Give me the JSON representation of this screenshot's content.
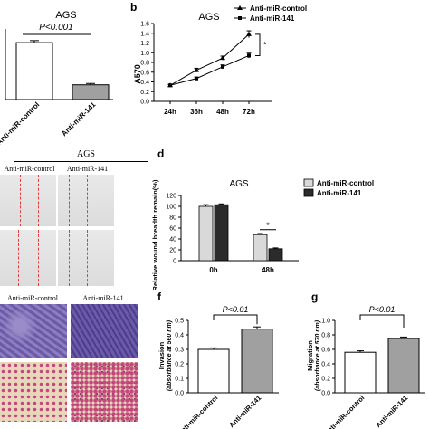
{
  "panels": {
    "a": {
      "chart_data": {
        "type": "bar",
        "title": "AGS",
        "categories": [
          "Anti-miR-control",
          "Anti-miR-141"
        ],
        "values": [
          0.85,
          0.22
        ],
        "errors": [
          0.03,
          0.02
        ],
        "colors": [
          "#ffffff",
          "#a0a0a0"
        ],
        "annotation": "P<0.001"
      }
    },
    "b": {
      "label": "b",
      "chart_data": {
        "type": "line",
        "title": "AGS",
        "ylabel": "A570",
        "categories": [
          "24h",
          "36h",
          "48h",
          "72h"
        ],
        "ylim": [
          0.0,
          1.6
        ],
        "yticks": [
          "0.0",
          "0.2",
          "0.4",
          "0.6",
          "0.8",
          "1.0",
          "1.2",
          "1.4",
          "1.6"
        ],
        "series": [
          {
            "name": "Anti-miR-control",
            "values": [
              0.33,
              0.64,
              0.89,
              1.38
            ],
            "errors": [
              0.02,
              0.04,
              0.04,
              0.07
            ],
            "marker": "triangle"
          },
          {
            "name": "Anti-miR-141",
            "values": [
              0.33,
              0.47,
              0.71,
              0.94
            ],
            "errors": [
              0.02,
              0.03,
              0.04,
              0.05
            ],
            "marker": "square"
          }
        ],
        "annotation": "*"
      }
    },
    "c": {
      "title": "AGS",
      "col_labels": [
        "Anti-miR-control",
        "Anti-miR-141"
      ]
    },
    "d": {
      "label": "d",
      "chart_data": {
        "type": "bar",
        "title": "AGS",
        "ylabel": "Relative wound breadth remain(%)",
        "categories": [
          "0h",
          "48h"
        ],
        "ylim": [
          0,
          120
        ],
        "yticks": [
          "0",
          "20",
          "40",
          "60",
          "80",
          "100",
          "120"
        ],
        "series": [
          {
            "name": "Anti-miR-control",
            "values": [
              100,
              48
            ],
            "errors": [
              3,
              2
            ],
            "color": "#d9d9d9"
          },
          {
            "name": "Anti-miR-141",
            "values": [
              103,
              22
            ],
            "errors": [
              1.5,
              1.5
            ],
            "color": "#2b2b2b"
          }
        ],
        "annotation": "*"
      }
    },
    "e": {
      "col_labels": [
        "Anti-miR-control",
        "Anti-miR-141"
      ]
    },
    "f": {
      "label": "f",
      "chart_data": {
        "type": "bar",
        "ylabel": "Invasion",
        "ylabel2": "(absorbance at 560 nm)",
        "categories": [
          "Anti-miR-control",
          "Anti-miR-141"
        ],
        "values": [
          0.3,
          0.44
        ],
        "errors": [
          0.01,
          0.015
        ],
        "colors": [
          "#ffffff",
          "#a0a0a0"
        ],
        "ylim": [
          0.0,
          0.5
        ],
        "yticks": [
          "0.0",
          "0.1",
          "0.2",
          "0.3",
          "0.4",
          "0.5"
        ],
        "annotation": "P<0.01"
      }
    },
    "g": {
      "label": "g",
      "chart_data": {
        "type": "bar",
        "ylabel": "Migration",
        "ylabel2": "(absorbance at 570 nm)",
        "categories": [
          "Anti-miR-control",
          "Anti-miR-141"
        ],
        "values": [
          0.56,
          0.75
        ],
        "errors": [
          0.02,
          0.02
        ],
        "colors": [
          "#ffffff",
          "#a0a0a0"
        ],
        "ylim": [
          0.0,
          1.0
        ],
        "yticks": [
          "0.0",
          "0.2",
          "0.4",
          "0.6",
          "0.8",
          "1.0"
        ],
        "annotation": "P<0.01"
      }
    }
  },
  "colors": {
    "wound_bg": "#e9e9e9",
    "wound_line": "#e23b3b",
    "crystal_violet": "#6b5aa8",
    "stain_bg_light": "#e8d7bc",
    "stain_pink": "#c2477a"
  }
}
